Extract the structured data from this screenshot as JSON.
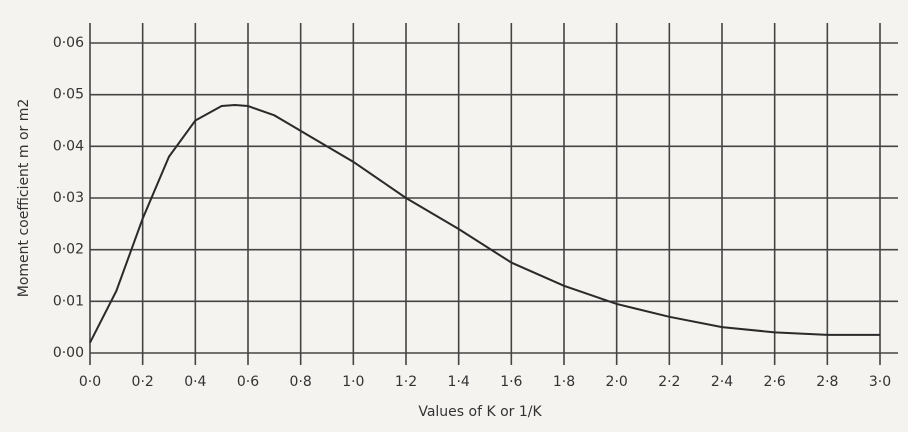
{
  "chart_data": {
    "type": "line",
    "x_label": "Values of K or 1/K",
    "y_label": "Moment coefficient m or m2",
    "x": [
      0,
      0.1,
      0.2,
      0.3,
      0.4,
      0.5,
      0.55,
      0.6,
      0.7,
      0.8,
      0.9,
      1.0,
      1.2,
      1.4,
      1.6,
      1.8,
      2.0,
      2.2,
      2.4,
      2.6,
      2.8,
      3.0
    ],
    "series": [
      {
        "color": "#2a2a2a",
        "values": [
          0.002,
          0.012,
          0.026,
          0.038,
          0.045,
          0.0478,
          0.048,
          0.0478,
          0.046,
          0.043,
          0.04,
          0.037,
          0.03,
          0.024,
          0.0175,
          0.013,
          0.0095,
          0.007,
          0.005,
          0.004,
          0.0035,
          0.0035
        ]
      }
    ],
    "xlim": [
      0,
      3.0
    ],
    "ylim": [
      0,
      0.06
    ],
    "xticks": [
      {
        "value": 0,
        "label": "0·0"
      },
      {
        "value": 0.2,
        "label": "0·2"
      },
      {
        "value": 0.4,
        "label": "0·4"
      },
      {
        "value": 0.6,
        "label": "0·6"
      },
      {
        "value": 0.8,
        "label": "0·8"
      },
      {
        "value": 1.0,
        "label": "1·0"
      },
      {
        "value": 1.2,
        "label": "1·2"
      },
      {
        "value": 1.4,
        "label": "1·4"
      },
      {
        "value": 1.6,
        "label": "1·6"
      },
      {
        "value": 1.8,
        "label": "1·8"
      },
      {
        "value": 2.0,
        "label": "2·0"
      },
      {
        "value": 2.2,
        "label": "2·2"
      },
      {
        "value": 2.4,
        "label": "2·4"
      },
      {
        "value": 2.6,
        "label": "2·6"
      },
      {
        "value": 2.8,
        "label": "2·8"
      },
      {
        "value": 3.0,
        "label": "3·0"
      }
    ],
    "yticks": [
      {
        "value": 0,
        "label": "0·00"
      },
      {
        "value": 0.01,
        "label": "0·01"
      },
      {
        "value": 0.02,
        "label": "0·02"
      },
      {
        "value": 0.03,
        "label": "0·03"
      },
      {
        "value": 0.04,
        "label": "0·04"
      },
      {
        "value": 0.05,
        "label": "0·05"
      },
      {
        "value": 0.06,
        "label": "0·06"
      }
    ],
    "grid": true
  }
}
